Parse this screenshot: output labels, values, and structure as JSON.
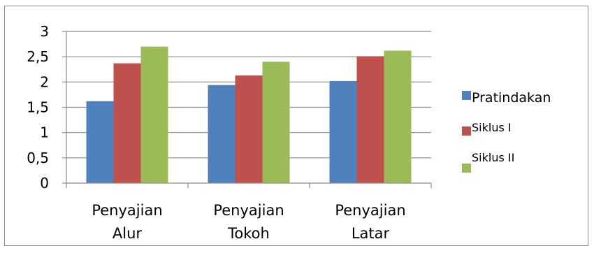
{
  "chart_data": {
    "type": "bar",
    "categories": [
      [
        "Penyajian",
        "Alur"
      ],
      [
        "Penyajian",
        "Tokoh"
      ],
      [
        "Penyajian",
        "Latar"
      ]
    ],
    "series": [
      {
        "name": "Pratindakan",
        "color": "#4f81bd",
        "values": [
          1.62,
          1.94,
          2.02
        ]
      },
      {
        "name": "Siklus I",
        "color": "#c0504d",
        "values": [
          2.37,
          2.13,
          2.51
        ]
      },
      {
        "name": "Siklus II",
        "color": "#9bbb59",
        "values": [
          2.7,
          2.4,
          2.62
        ]
      }
    ],
    "yticks": [
      "0",
      "0,5",
      "1",
      "1,5",
      "2",
      "2,5",
      "3"
    ],
    "ylim": [
      0,
      3
    ],
    "grid": true,
    "legend_position": "right",
    "title": "",
    "xlabel": "",
    "ylabel": ""
  }
}
